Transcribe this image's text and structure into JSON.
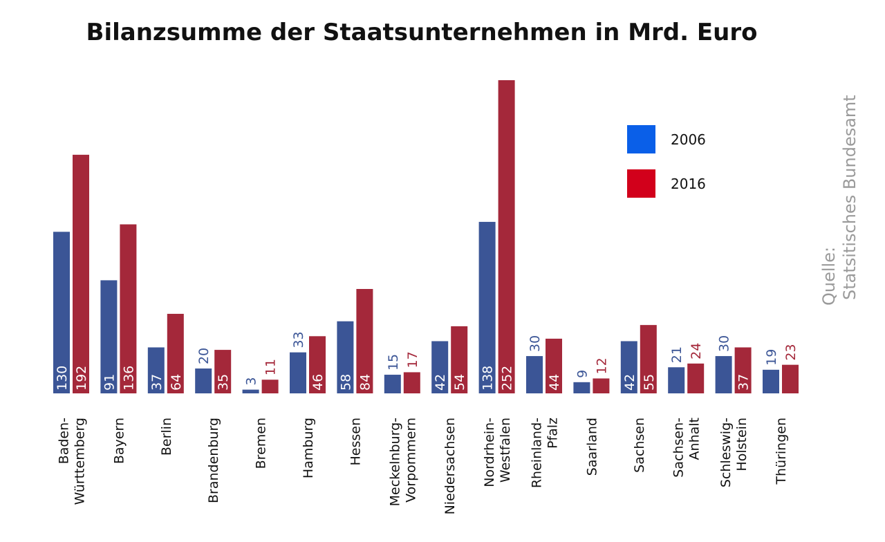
{
  "chart_data": {
    "type": "bar",
    "title": "Bilanzsumme der Staatsunternehmen in Mrd. Euro",
    "xlabel": "",
    "ylabel": "",
    "ylim": [
      0,
      252
    ],
    "grid": false,
    "legend_position": "top-right",
    "categories": [
      "Baden-\nWürttemberg",
      "Bayern",
      "Berlin",
      "Brandenburg",
      "Bremen",
      "Hamburg",
      "Hessen",
      "Meckelnburg-\nVorpommern",
      "Niedersachsen",
      "Nordrhein-\nWestfalen",
      "Rheinland-\nPfalz",
      "Saarland",
      "Sachsen",
      "Sachsen-\nAnhalt",
      "Schleswig-\nHolstein",
      "Thüringen"
    ],
    "series": [
      {
        "name": "2006",
        "legend_color": "#0a5fe8",
        "bar_color": "#3b5596",
        "values": [
          130,
          91,
          37,
          20,
          3,
          33,
          58,
          15,
          42,
          138,
          30,
          9,
          42,
          21,
          30,
          19
        ]
      },
      {
        "name": "2016",
        "legend_color": "#d2001b",
        "bar_color": "#a4283a",
        "values": [
          192,
          136,
          64,
          35,
          11,
          46,
          84,
          17,
          54,
          252,
          44,
          12,
          55,
          24,
          37,
          23
        ]
      }
    ],
    "source_label": "Quelle:",
    "source_name": "Statsitisches Bundesamt"
  }
}
